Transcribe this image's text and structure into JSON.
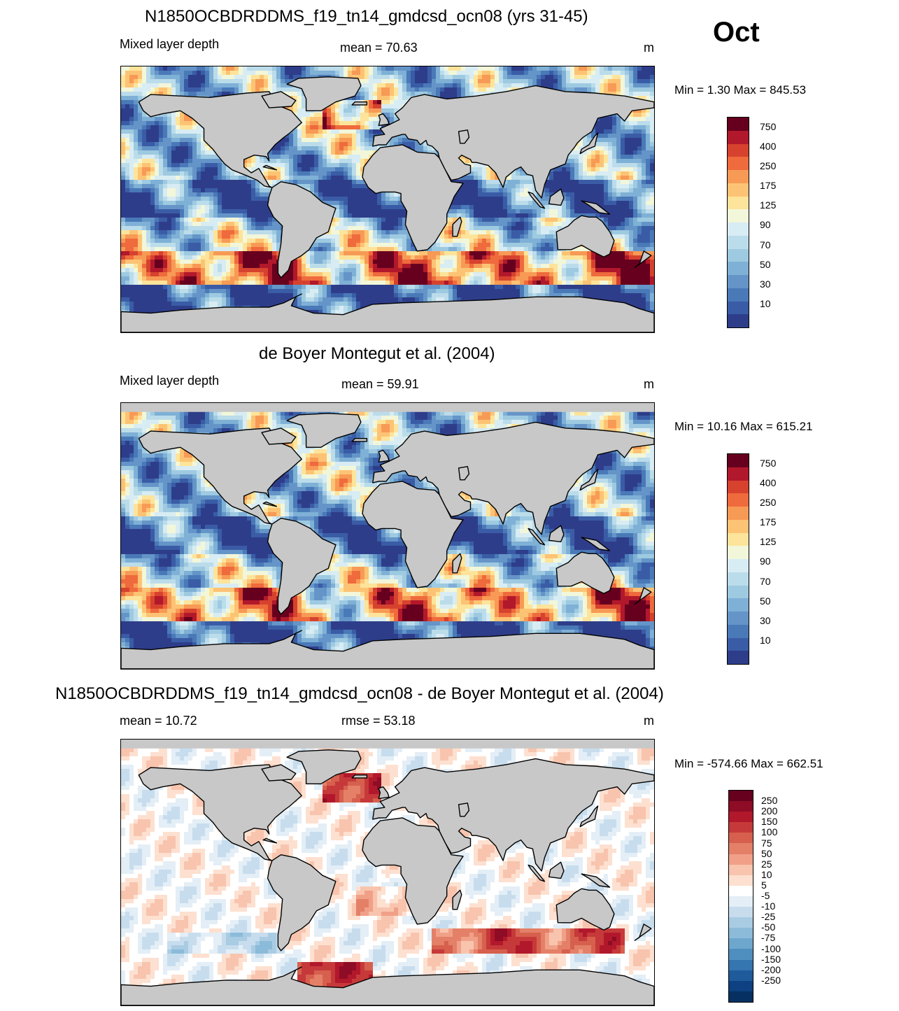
{
  "month": "Oct",
  "panels": [
    {
      "id": "model",
      "title": "N1850OCBDRDDMS_f19_tn14_gmdcsd_ocn08 (yrs 31-45)",
      "left_label": "Mixed layer depth",
      "center_label": "mean =  70.63",
      "units": "m",
      "minmax": "Min =   1.30 Max = 845.53",
      "palette": "mld"
    },
    {
      "id": "obs",
      "title": "de Boyer Montegut et al. (2004)",
      "left_label": "Mixed layer depth",
      "center_label": "mean =  59.91",
      "units": "m",
      "minmax": "Min =  10.16 Max = 615.21",
      "palette": "mld"
    },
    {
      "id": "diff",
      "title": "N1850OCBDRDDMS_f19_tn14_gmdcsd_ocn08 - de Boyer Montegut et al. (2004)",
      "left_label": "mean =  10.72",
      "center_label": "rmse =  53.18",
      "units": "m",
      "minmax": "Min = -574.66 Max = 662.51",
      "palette": "diff"
    }
  ],
  "colorbars": {
    "mld": {
      "labels": [
        "750",
        "400",
        "250",
        "175",
        "125",
        "90",
        "70",
        "50",
        "30",
        "10"
      ],
      "colors": [
        "#67001f",
        "#b2182b",
        "#d6422e",
        "#ef6a3c",
        "#f79a55",
        "#fdc374",
        "#fde49a",
        "#f2f7d9",
        "#d8ecf3",
        "#bbdcea",
        "#9ecae1",
        "#7fb0d6",
        "#6595c8",
        "#4a79b8",
        "#3a5ca6",
        "#2e3d8a"
      ]
    },
    "diff": {
      "labels": [
        "250",
        "200",
        "150",
        "100",
        "75",
        "50",
        "25",
        "10",
        "5",
        "-5",
        "-10",
        "-25",
        "-50",
        "-75",
        "-100",
        "-150",
        "-200",
        "-250"
      ],
      "colors": [
        "#67001f",
        "#8e0c25",
        "#b2182b",
        "#c6393a",
        "#d6604d",
        "#e48068",
        "#f1a088",
        "#f8c4ae",
        "#fde0d0",
        "#ffffff",
        "#e3eef6",
        "#c7ddee",
        "#a9cce3",
        "#8bbbd9",
        "#6ea7cd",
        "#4f8fc0",
        "#3575b0",
        "#1f5a9b",
        "#0d4181",
        "#053061"
      ]
    }
  },
  "land_color": "#c8c8c8"
}
